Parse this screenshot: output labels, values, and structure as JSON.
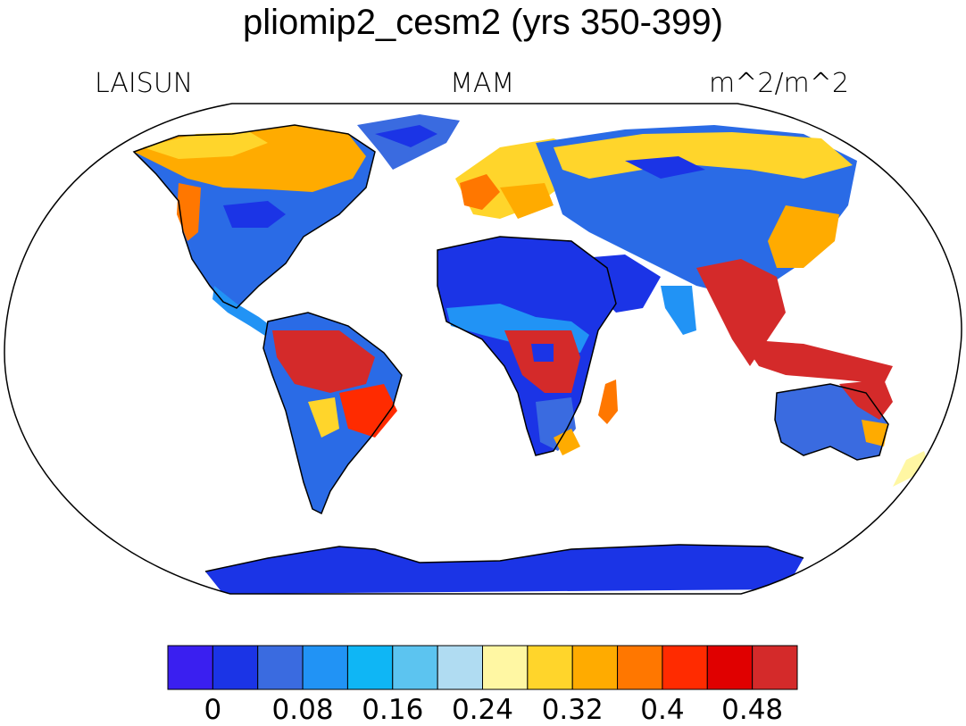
{
  "title": "pliomip2_cesm2 (yrs 350-399)",
  "left_label": "LAISUN",
  "center_label": "MAM",
  "right_label": "m^2/m^2",
  "colorbar": {
    "colors": [
      "#3a1ff0",
      "#1b34e6",
      "#3a6be0",
      "#2193f5",
      "#0fb6f5",
      "#5cc4f0",
      "#b0dcf2",
      "#fff7a3",
      "#ffd52b",
      "#ffab00",
      "#ff7700",
      "#ff2b00",
      "#e00000",
      "#d42a2a"
    ],
    "labels": [
      "0",
      "0.08",
      "0.16",
      "0.24",
      "0.32",
      "0.4",
      "0.48"
    ]
  },
  "map": {
    "projection": "Robinson",
    "variable": "LAISUN",
    "season": "MAM",
    "units": "m^2/m^2",
    "land_color_scale": "blue (low) to red (high)"
  }
}
